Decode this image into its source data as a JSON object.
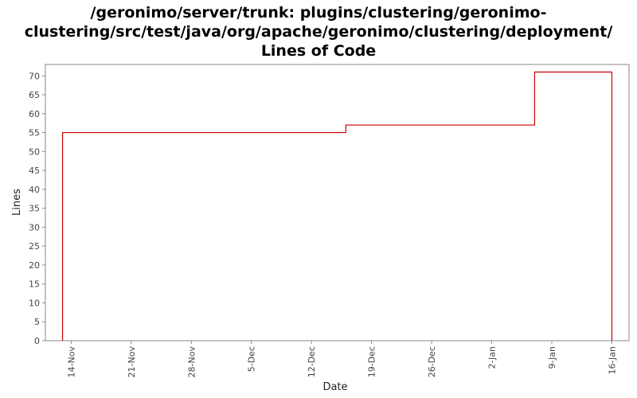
{
  "title_lines": [
    "/geronimo/server/trunk: plugins/clustering/geronimo-",
    "clustering/src/test/java/org/apache/geronimo/clustering/deployment/",
    "Lines of Code"
  ],
  "chart_data": {
    "type": "line",
    "step": true,
    "title": "/geronimo/server/trunk: plugins/clustering/geronimo-clustering/src/test/java/org/apache/geronimo/clustering/deployment/ Lines of Code",
    "xlabel": "Date",
    "ylabel": "Lines",
    "xlim": [
      "2007-11-11",
      "2008-01-18"
    ],
    "ylim": [
      0,
      73
    ],
    "y_ticks": [
      0,
      5,
      10,
      15,
      20,
      25,
      30,
      35,
      40,
      45,
      50,
      55,
      60,
      65,
      70
    ],
    "x_ticks": [
      {
        "date": "2007-11-14",
        "label": "14-Nov"
      },
      {
        "date": "2007-11-21",
        "label": "21-Nov"
      },
      {
        "date": "2007-11-28",
        "label": "28-Nov"
      },
      {
        "date": "2007-12-05",
        "label": "5-Dec"
      },
      {
        "date": "2007-12-12",
        "label": "12-Dec"
      },
      {
        "date": "2007-12-19",
        "label": "19-Dec"
      },
      {
        "date": "2007-12-26",
        "label": "26-Dec"
      },
      {
        "date": "2008-01-02",
        "label": "2-Jan"
      },
      {
        "date": "2008-01-09",
        "label": "9-Jan"
      },
      {
        "date": "2008-01-16",
        "label": "16-Jan"
      }
    ],
    "series": [
      {
        "color": "#cc0000",
        "points": [
          {
            "x": "2007-11-13",
            "y": 0
          },
          {
            "x": "2007-11-13",
            "y": 55
          },
          {
            "x": "2007-12-16",
            "y": 57
          },
          {
            "x": "2008-01-07",
            "y": 71
          },
          {
            "x": "2008-01-16",
            "y": 71
          },
          {
            "x": "2008-01-16",
            "y": 0
          }
        ]
      }
    ],
    "grid": false,
    "legend": "none"
  }
}
